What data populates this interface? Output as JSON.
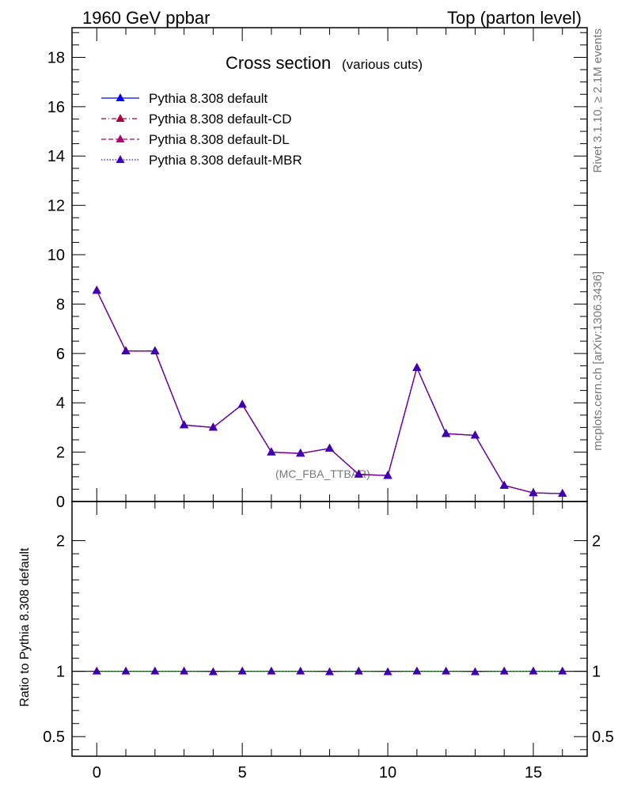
{
  "header": {
    "left": "1960 GeV ppbar",
    "right": "Top (parton level)"
  },
  "side_text": {
    "rivet": "Rivet 3.1.10, ≥ 2.1M events",
    "source": "mcplots.cern.ch [arXiv:1306.3436]"
  },
  "colors": {
    "default": "#0000ff",
    "cd": "#b0003c",
    "dl": "#b0006e",
    "mbr": "#3c00c8",
    "marker": "#4000b0",
    "ratio_band": "#00aa00"
  },
  "chart_data": [
    {
      "type": "line",
      "title": "Cross section",
      "subtitle": "(various cuts)",
      "watermark": "(MC_FBA_TTBAR)",
      "xlim": [
        -0.85,
        16.85
      ],
      "ylim": [
        0,
        19.2
      ],
      "yticks": [
        0,
        2,
        4,
        6,
        8,
        10,
        12,
        14,
        16,
        18
      ],
      "legend_position": "top-left",
      "x": [
        0,
        1,
        2,
        3,
        4,
        5,
        6,
        7,
        8,
        9,
        10,
        11,
        12,
        13,
        14,
        15,
        16
      ],
      "series": [
        {
          "name": "Pythia 8.308 default",
          "style": "solid",
          "color_key": "default",
          "values": [
            8.55,
            6.1,
            6.1,
            3.1,
            3.0,
            3.93,
            2.0,
            1.95,
            2.15,
            1.1,
            1.05,
            5.42,
            2.75,
            2.68,
            0.65,
            0.35,
            0.32
          ]
        },
        {
          "name": "Pythia 8.308 default-CD",
          "style": "dashdot",
          "color_key": "cd",
          "values": [
            8.55,
            6.1,
            6.1,
            3.1,
            3.0,
            3.93,
            2.0,
            1.95,
            2.15,
            1.1,
            1.05,
            5.42,
            2.75,
            2.68,
            0.65,
            0.35,
            0.32
          ]
        },
        {
          "name": "Pythia 8.308 default-DL",
          "style": "dashed",
          "color_key": "dl",
          "values": [
            8.55,
            6.1,
            6.1,
            3.1,
            3.0,
            3.93,
            2.0,
            1.95,
            2.15,
            1.1,
            1.05,
            5.42,
            2.75,
            2.68,
            0.65,
            0.35,
            0.32
          ]
        },
        {
          "name": "Pythia 8.308 default-MBR",
          "style": "dotted",
          "color_key": "mbr",
          "values": [
            8.55,
            6.1,
            6.1,
            3.1,
            3.0,
            3.93,
            2.0,
            1.95,
            2.15,
            1.1,
            1.05,
            5.42,
            2.75,
            2.68,
            0.65,
            0.35,
            0.32
          ]
        }
      ]
    },
    {
      "type": "line",
      "ylabel": "Ratio to Pythia 8.308 default",
      "xlim": [
        -0.85,
        16.85
      ],
      "ylim": [
        0.35,
        2.3
      ],
      "yticks": [
        0.5,
        1,
        2
      ],
      "ytick_labels": [
        "0.5",
        "1",
        "2"
      ],
      "xticks": [
        0,
        5,
        10,
        15
      ],
      "xtick_labels": [
        "0",
        "5",
        "10",
        "15"
      ],
      "x": [
        0,
        1,
        2,
        3,
        4,
        5,
        6,
        7,
        8,
        9,
        10,
        11,
        12,
        13,
        14,
        15,
        16
      ],
      "values": [
        1.0,
        1.0,
        1.0,
        1.0,
        0.995,
        1.0,
        1.0,
        1.0,
        0.995,
        1.0,
        0.995,
        1.0,
        1.0,
        0.995,
        1.0,
        1.0,
        1.0
      ]
    }
  ]
}
